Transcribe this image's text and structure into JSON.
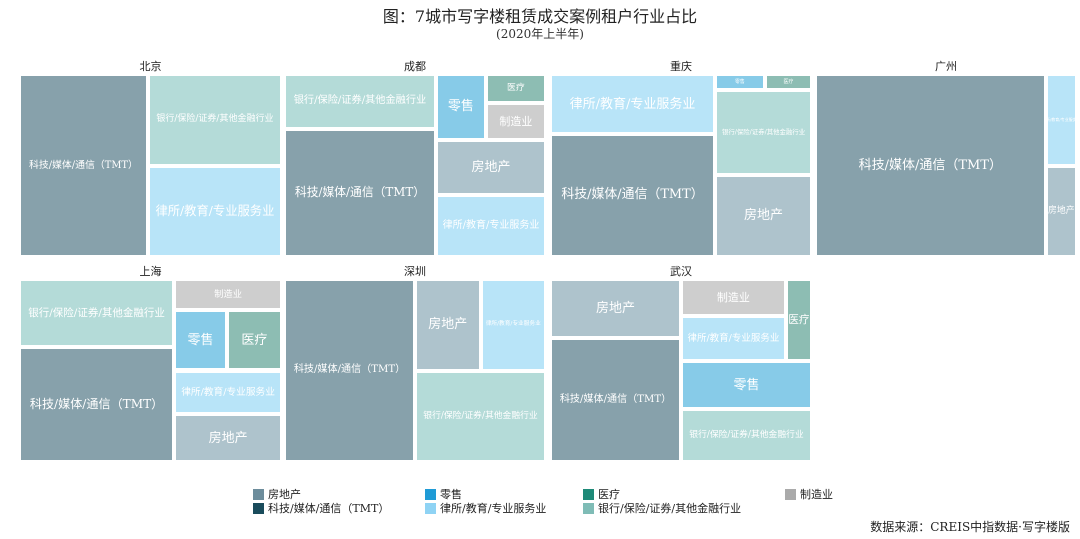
{
  "title": "图：7城市写字楼租赁成交案例租户行业占比",
  "subtitle": "(2020年上半年)",
  "source": "数据来源：CREIS中指数据·写字楼版",
  "colors": {
    "房地产": "#aec3cc",
    "零售": "#87cbe8",
    "医疗": "#8dbdb3",
    "制造业": "#cecece",
    "科技/媒体/通信（TMT）": "#87a1ab",
    "律所/教育/专业服务业": "#b8e4f8",
    "银行/保险/证券/其他金融行业": "#b4dbd8"
  },
  "legend": [
    {
      "label": "房地产",
      "color": "#6d8d9c"
    },
    {
      "label": "零售",
      "color": "#1f9bd6"
    },
    {
      "label": "医疗",
      "color": "#1e8a78"
    },
    {
      "label": "制造业",
      "color": "#aaaaaa"
    },
    {
      "label": "科技/媒体/通信（TMT）",
      "color": "#1a4c5c"
    },
    {
      "label": "律所/教育/专业服务业",
      "color": "#8fd3f4"
    },
    {
      "label": "银行/保险/证券/其他金融行业",
      "color": "#7fbcb6"
    }
  ],
  "chart_data": {
    "type": "treemap",
    "unit": "share of leasing transaction cases (estimated from tile areas)",
    "cities": [
      {
        "city": "北京",
        "segments": [
          {
            "industry": "科技/媒体/通信（TMT）",
            "share": 0.49
          },
          {
            "industry": "银行/保险/证券/其他金融行业",
            "share": 0.26
          },
          {
            "industry": "律所/教育/专业服务业",
            "share": 0.25
          }
        ]
      },
      {
        "city": "成都",
        "segments": [
          {
            "industry": "科技/媒体/通信（TMT）",
            "share": 0.36
          },
          {
            "industry": "银行/保险/证券/其他金融行业",
            "share": 0.17
          },
          {
            "industry": "房地产",
            "share": 0.13
          },
          {
            "industry": "律所/教育/专业服务业",
            "share": 0.14
          },
          {
            "industry": "零售",
            "share": 0.08
          },
          {
            "industry": "医疗",
            "share": 0.05
          },
          {
            "industry": "制造业",
            "share": 0.07
          }
        ]
      },
      {
        "city": "重庆",
        "segments": [
          {
            "industry": "科技/媒体/通信（TMT）",
            "share": 0.41
          },
          {
            "industry": "律所/教育/专业服务业",
            "share": 0.2
          },
          {
            "industry": "银行/保险/证券/其他金融行业",
            "share": 0.17
          },
          {
            "industry": "房地产",
            "share": 0.17
          },
          {
            "industry": "零售",
            "share": 0.03
          },
          {
            "industry": "医疗",
            "share": 0.03
          }
        ]
      },
      {
        "city": "广州",
        "segments": [
          {
            "industry": "科技/媒体/通信（TMT）",
            "share": 0.86
          },
          {
            "industry": "律所/教育/专业服务业",
            "share": 0.07
          },
          {
            "industry": "房地产",
            "share": 0.07
          }
        ]
      },
      {
        "city": "上海",
        "segments": [
          {
            "industry": "科技/媒体/通信（TMT）",
            "share": 0.4
          },
          {
            "industry": "银行/保险/证券/其他金融行业",
            "share": 0.26
          },
          {
            "industry": "房地产",
            "share": 0.08
          },
          {
            "industry": "律所/教育/专业服务业",
            "share": 0.08
          },
          {
            "industry": "零售",
            "share": 0.07
          },
          {
            "industry": "医疗",
            "share": 0.07
          },
          {
            "industry": "制造业",
            "share": 0.06
          }
        ]
      },
      {
        "city": "深圳",
        "segments": [
          {
            "industry": "科技/媒体/通信（TMT）",
            "share": 0.5
          },
          {
            "industry": "银行/保险/证券/其他金融行业",
            "share": 0.25
          },
          {
            "industry": "房地产",
            "share": 0.12
          },
          {
            "industry": "律所/教育/专业服务业",
            "share": 0.12
          }
        ]
      },
      {
        "city": "武汉",
        "segments": [
          {
            "industry": "科技/媒体/通信（TMT）",
            "share": 0.39
          },
          {
            "industry": "房地产",
            "share": 0.18
          },
          {
            "industry": "银行/保险/证券/其他金融行业",
            "share": 0.15
          },
          {
            "industry": "零售",
            "share": 0.12
          },
          {
            "industry": "律所/教育/专业服务业",
            "share": 0.1
          },
          {
            "industry": "制造业",
            "share": 0.09
          },
          {
            "industry": "医疗",
            "share": 0.06
          }
        ]
      }
    ]
  }
}
